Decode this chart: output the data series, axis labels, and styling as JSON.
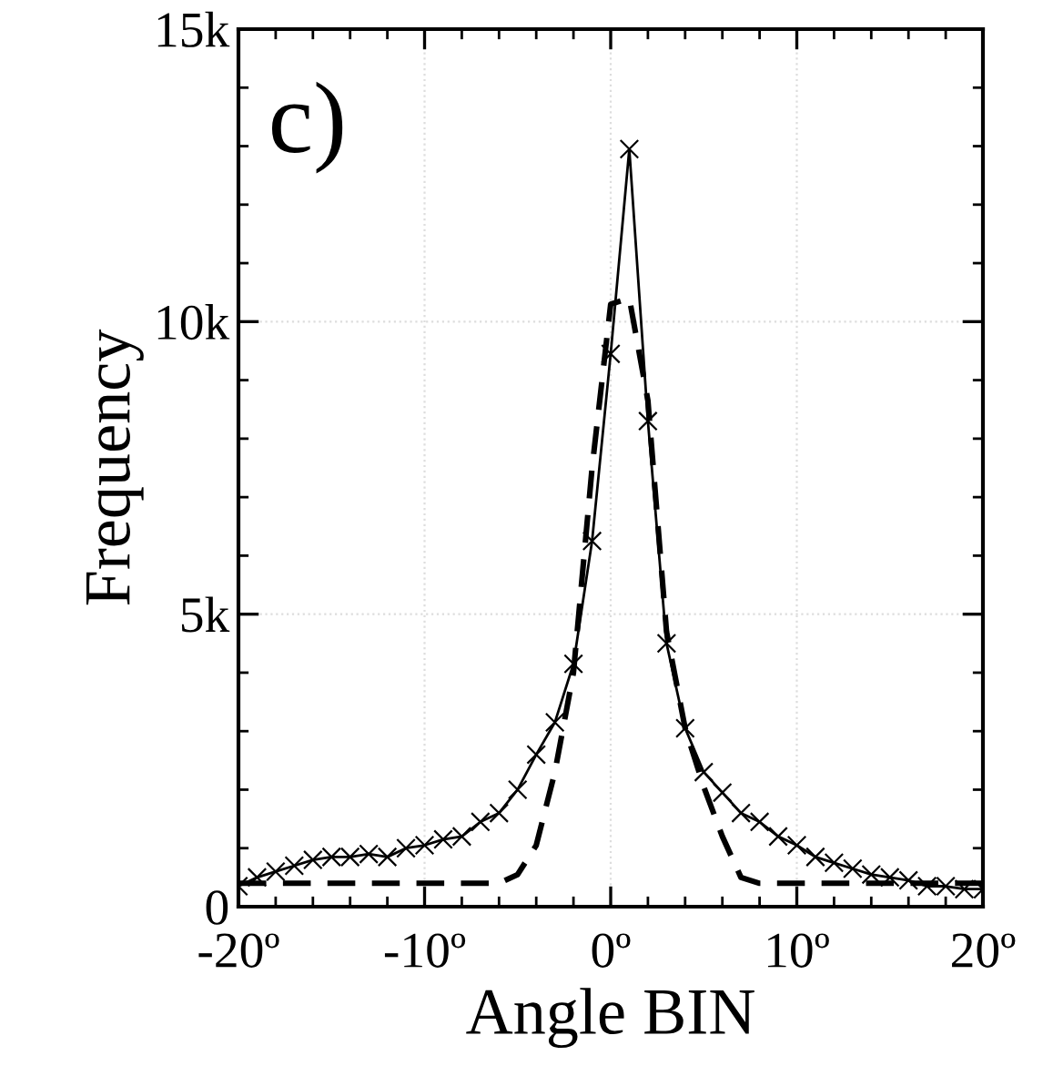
{
  "chart_data": {
    "type": "line",
    "xlabel": "Angle BIN",
    "ylabel": "Frequency",
    "annotations": [
      "c)"
    ],
    "x": [
      -20,
      -19,
      -18,
      -17,
      -16,
      -15,
      -14,
      -13,
      -12,
      -11,
      -10,
      -9,
      -8,
      -7,
      -6,
      -5,
      -4,
      -3,
      -2,
      -1,
      0,
      1,
      2,
      3,
      4,
      5,
      6,
      7,
      8,
      9,
      10,
      11,
      12,
      13,
      14,
      15,
      16,
      17,
      18,
      19,
      20
    ],
    "series": [
      {
        "color": "#000000",
        "marker": "cross",
        "line_style": "solid",
        "values": [
          350,
          500,
          600,
          700,
          800,
          850,
          850,
          900,
          850,
          1000,
          1050,
          1150,
          1200,
          1450,
          1600,
          2000,
          2600,
          3150,
          4150,
          6250,
          9450,
          12950,
          8300,
          4500,
          3050,
          2300,
          1950,
          1600,
          1450,
          1200,
          1050,
          850,
          750,
          650,
          550,
          500,
          450,
          350,
          350,
          300,
          300
        ]
      },
      {
        "color": "#000000",
        "marker": "none",
        "line_style": "dashed",
        "values": [
          400,
          400,
          400,
          400,
          400,
          400,
          400,
          400,
          400,
          400,
          400,
          400,
          400,
          400,
          400,
          550,
          1050,
          2300,
          4000,
          7500,
          10300,
          10400,
          8650,
          4700,
          3050,
          2050,
          1200,
          500,
          400,
          400,
          400,
          400,
          400,
          400,
          400,
          400,
          400,
          400,
          400,
          400,
          400
        ]
      }
    ],
    "xlim": [
      -20,
      20
    ],
    "xticks": [
      {
        "value": -20,
        "label": "-20º"
      },
      {
        "value": -10,
        "label": "-10º"
      },
      {
        "value": 0,
        "label": "0º"
      },
      {
        "value": 10,
        "label": "10º"
      },
      {
        "value": 20,
        "label": "20º"
      }
    ],
    "ylim": [
      0,
      15000
    ],
    "yticks": [
      {
        "value": 0,
        "label": "0"
      },
      {
        "value": 5000,
        "label": "5k"
      },
      {
        "value": 10000,
        "label": "10k"
      },
      {
        "value": 15000,
        "label": "15k"
      }
    ],
    "grid": true
  }
}
